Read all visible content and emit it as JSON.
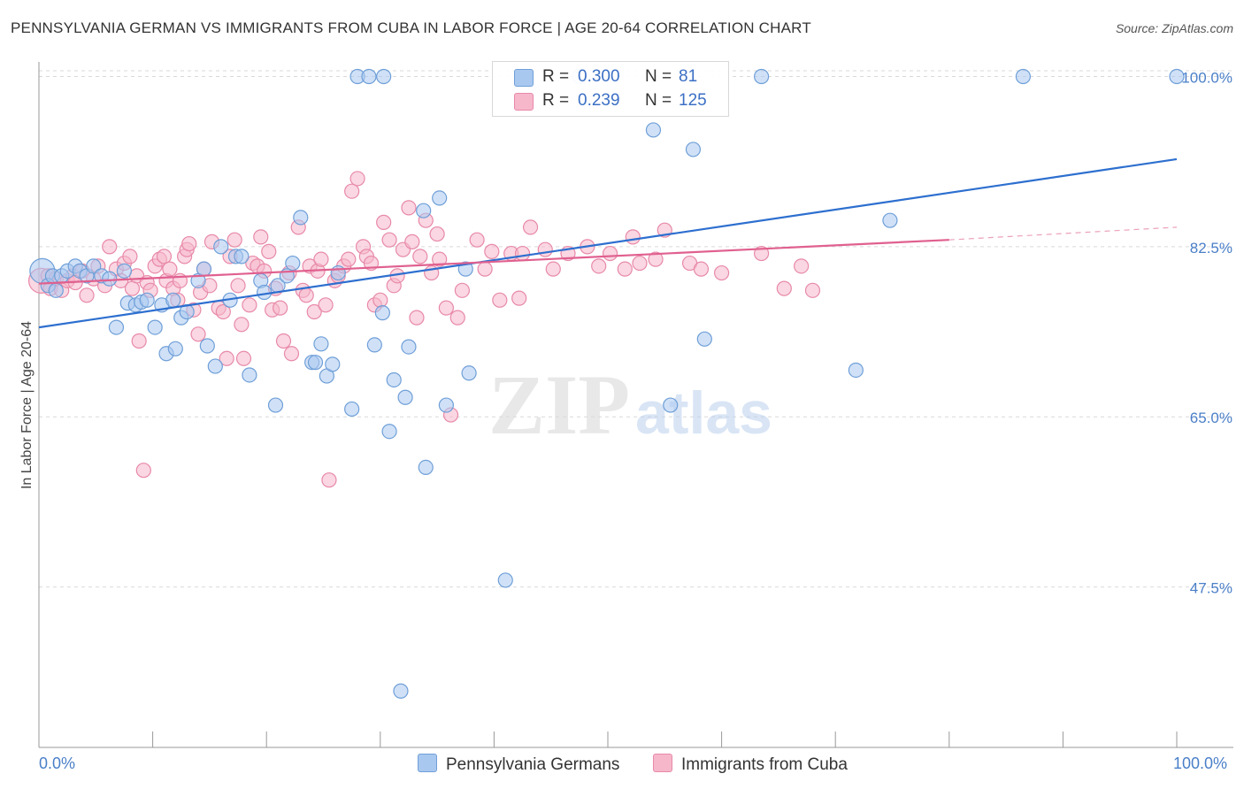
{
  "title": "PENNSYLVANIA GERMAN VS IMMIGRANTS FROM CUBA IN LABOR FORCE | AGE 20-64 CORRELATION CHART",
  "source": "Source: ZipAtlas.com",
  "watermark": {
    "zip": "ZIP",
    "atlas": "atlas"
  },
  "legend": {
    "rows": [
      {
        "r_label": "R =",
        "r_value": "0.300",
        "n_label": "N =",
        "n_value": "81"
      },
      {
        "r_label": "R =",
        "r_value": "0.239",
        "n_label": "N =",
        "n_value": "125"
      }
    ]
  },
  "x_axis": {
    "min_label": "0.0%",
    "max_label": "100.0%"
  },
  "bottom_legend": {
    "series1": "Pennsylvania Germans",
    "series2": "Immigrants from Cuba"
  },
  "colors": {
    "blue_fill": "#a9c8f0",
    "blue_stroke": "#6f9fd8",
    "blue_line": "#2d6fcf",
    "pink_fill": "#f6b7cb",
    "pink_stroke": "#e889a8",
    "pink_line": "#e0608f",
    "grid": "#d9d9d9",
    "tick_label": "#4a7fc8"
  },
  "chart_data": {
    "type": "scatter",
    "title": "PENNSYLVANIA GERMAN VS IMMIGRANTS FROM CUBA IN LABOR FORCE | AGE 20-64 CORRELATION CHART",
    "xlabel": "",
    "ylabel": "In Labor Force | Age 20-64",
    "xlim": [
      0,
      100
    ],
    "ylim": [
      31,
      101.5
    ],
    "y_ticks": [
      47.5,
      65.0,
      82.5,
      100.0
    ],
    "y_tick_labels": [
      "47.5%",
      "65.0%",
      "82.5%",
      "100.0%"
    ],
    "x_tick_labels": [
      "0.0%",
      "100.0%"
    ],
    "grid": "horizontal dashed",
    "legend_position": "top-center",
    "series": [
      {
        "name": "Pennsylvania Germans",
        "color": "#a9c8f0",
        "R": 0.3,
        "N": 81,
        "trend": {
          "x": [
            0,
            100
          ],
          "y": [
            74.2,
            91.5
          ]
        },
        "points": [
          [
            0.3,
            80.0,
            3
          ],
          [
            0.8,
            78.5,
            1
          ],
          [
            1.2,
            79.5,
            1
          ],
          [
            1.5,
            78.0,
            1
          ],
          [
            2.0,
            79.5,
            1
          ],
          [
            2.5,
            80.0,
            1
          ],
          [
            3.2,
            80.5,
            1
          ],
          [
            3.6,
            80.0,
            1
          ],
          [
            4.2,
            79.5,
            1
          ],
          [
            4.8,
            80.5,
            1
          ],
          [
            5.5,
            79.5,
            1
          ],
          [
            6.2,
            79.2,
            1
          ],
          [
            6.8,
            74.2,
            1
          ],
          [
            7.5,
            80.0,
            1
          ],
          [
            7.8,
            76.7,
            1
          ],
          [
            8.5,
            76.5,
            1
          ],
          [
            9.0,
            76.8,
            1
          ],
          [
            9.5,
            77.0,
            1
          ],
          [
            10.2,
            74.2,
            1
          ],
          [
            10.8,
            76.5,
            1
          ],
          [
            11.2,
            71.5,
            1
          ],
          [
            11.8,
            77.0,
            1
          ],
          [
            12.0,
            72.0,
            1
          ],
          [
            12.5,
            75.2,
            1
          ],
          [
            13.0,
            75.8,
            1
          ],
          [
            14.0,
            79.0,
            1
          ],
          [
            14.5,
            80.2,
            1
          ],
          [
            14.8,
            72.3,
            1
          ],
          [
            15.5,
            70.2,
            1
          ],
          [
            16.0,
            82.5,
            1
          ],
          [
            16.8,
            77.0,
            1
          ],
          [
            17.3,
            81.5,
            1
          ],
          [
            17.8,
            81.5,
            1
          ],
          [
            18.5,
            69.3,
            1
          ],
          [
            19.5,
            79.0,
            1
          ],
          [
            19.8,
            77.8,
            1
          ],
          [
            20.8,
            66.2,
            1
          ],
          [
            21.0,
            78.5,
            1
          ],
          [
            21.8,
            79.5,
            1
          ],
          [
            22.3,
            80.8,
            1
          ],
          [
            23.0,
            85.5,
            1
          ],
          [
            24.0,
            70.6,
            1
          ],
          [
            24.3,
            70.6,
            1
          ],
          [
            24.8,
            72.5,
            1
          ],
          [
            25.3,
            69.2,
            1
          ],
          [
            25.8,
            70.4,
            1
          ],
          [
            26.3,
            79.8,
            1
          ],
          [
            27.5,
            65.8,
            1
          ],
          [
            28.0,
            100.0,
            1
          ],
          [
            29.0,
            100.0,
            1
          ],
          [
            29.5,
            72.4,
            1
          ],
          [
            30.2,
            75.7,
            1
          ],
          [
            30.3,
            100.0,
            1
          ],
          [
            30.8,
            63.5,
            1
          ],
          [
            31.2,
            68.8,
            1
          ],
          [
            31.8,
            36.8,
            1
          ],
          [
            32.2,
            67.0,
            1
          ],
          [
            32.5,
            72.2,
            1
          ],
          [
            33.8,
            86.2,
            1
          ],
          [
            34.0,
            59.8,
            1
          ],
          [
            35.2,
            87.5,
            1
          ],
          [
            35.8,
            66.2,
            1
          ],
          [
            37.5,
            80.2,
            1
          ],
          [
            37.8,
            69.5,
            1
          ],
          [
            41.0,
            48.2,
            1
          ],
          [
            42.5,
            100.0,
            1
          ],
          [
            47.5,
            100.0,
            1
          ],
          [
            54.0,
            94.5,
            1
          ],
          [
            55.5,
            66.2,
            1
          ],
          [
            57.5,
            92.5,
            1
          ],
          [
            58.5,
            73.0,
            1
          ],
          [
            63.5,
            100.0,
            1
          ],
          [
            71.8,
            69.8,
            1
          ],
          [
            74.8,
            85.2,
            1
          ],
          [
            86.5,
            100.0,
            1
          ],
          [
            100.0,
            100.0,
            1
          ]
        ]
      },
      {
        "name": "Immigrants from Cuba",
        "color": "#f6b7cb",
        "R": 0.239,
        "N": 125,
        "trend": {
          "x": [
            0,
            80
          ],
          "y": [
            78.7,
            83.2
          ]
        },
        "trend_dashed_extension": {
          "x": [
            80,
            100
          ],
          "y": [
            83.2,
            84.5
          ]
        },
        "points": [
          [
            0.2,
            79.0,
            2
          ],
          [
            0.8,
            79.5,
            1
          ],
          [
            1.0,
            78.2,
            1
          ],
          [
            1.5,
            79.2,
            1
          ],
          [
            2.0,
            78.0,
            1
          ],
          [
            2.5,
            79.0,
            1
          ],
          [
            3.0,
            79.5,
            1
          ],
          [
            3.2,
            78.8,
            1
          ],
          [
            3.8,
            80.0,
            1
          ],
          [
            4.2,
            77.5,
            1
          ],
          [
            4.8,
            79.2,
            1
          ],
          [
            5.2,
            80.5,
            1
          ],
          [
            5.8,
            78.5,
            1
          ],
          [
            6.2,
            82.5,
            1
          ],
          [
            6.8,
            80.2,
            1
          ],
          [
            7.2,
            79.0,
            1
          ],
          [
            7.5,
            80.8,
            1
          ],
          [
            8.0,
            81.5,
            1
          ],
          [
            8.2,
            78.2,
            1
          ],
          [
            8.6,
            79.5,
            1
          ],
          [
            8.8,
            72.8,
            1
          ],
          [
            9.2,
            59.5,
            1
          ],
          [
            9.5,
            78.8,
            1
          ],
          [
            9.8,
            78.0,
            1
          ],
          [
            10.2,
            80.5,
            1
          ],
          [
            10.6,
            81.2,
            1
          ],
          [
            11.0,
            81.5,
            1
          ],
          [
            11.2,
            79.0,
            1
          ],
          [
            11.5,
            80.2,
            1
          ],
          [
            11.8,
            78.2,
            1
          ],
          [
            12.2,
            77.0,
            1
          ],
          [
            12.4,
            79.0,
            1
          ],
          [
            12.8,
            81.5,
            1
          ],
          [
            13.0,
            82.2,
            1
          ],
          [
            13.2,
            82.8,
            1
          ],
          [
            13.6,
            76.0,
            1
          ],
          [
            14.0,
            73.5,
            1
          ],
          [
            14.2,
            77.8,
            1
          ],
          [
            14.5,
            80.2,
            1
          ],
          [
            15.0,
            78.5,
            1
          ],
          [
            15.2,
            83.0,
            1
          ],
          [
            15.8,
            76.2,
            1
          ],
          [
            16.2,
            75.8,
            1
          ],
          [
            16.5,
            71.0,
            1
          ],
          [
            16.8,
            81.5,
            1
          ],
          [
            17.2,
            83.2,
            1
          ],
          [
            17.5,
            78.5,
            1
          ],
          [
            17.8,
            74.5,
            1
          ],
          [
            18.0,
            71.0,
            1
          ],
          [
            18.5,
            76.5,
            1
          ],
          [
            18.8,
            80.8,
            1
          ],
          [
            19.2,
            80.5,
            1
          ],
          [
            19.5,
            83.5,
            1
          ],
          [
            19.8,
            80.0,
            1
          ],
          [
            20.2,
            82.0,
            1
          ],
          [
            20.5,
            76.0,
            1
          ],
          [
            20.8,
            78.2,
            1
          ],
          [
            21.2,
            76.2,
            1
          ],
          [
            21.5,
            72.8,
            1
          ],
          [
            22.0,
            79.8,
            1
          ],
          [
            22.2,
            71.5,
            1
          ],
          [
            22.8,
            84.5,
            1
          ],
          [
            23.2,
            78.0,
            1
          ],
          [
            23.5,
            77.5,
            1
          ],
          [
            23.8,
            80.5,
            1
          ],
          [
            24.2,
            75.8,
            1
          ],
          [
            24.5,
            80.0,
            1
          ],
          [
            24.8,
            81.2,
            1
          ],
          [
            25.2,
            76.5,
            1
          ],
          [
            25.5,
            58.5,
            1
          ],
          [
            26.0,
            79.0,
            1
          ],
          [
            26.3,
            79.5,
            1
          ],
          [
            26.8,
            80.5,
            1
          ],
          [
            27.2,
            81.2,
            1
          ],
          [
            27.5,
            88.2,
            1
          ],
          [
            28.0,
            89.5,
            1
          ],
          [
            28.5,
            82.5,
            1
          ],
          [
            28.8,
            81.5,
            1
          ],
          [
            29.2,
            80.8,
            1
          ],
          [
            29.5,
            76.5,
            1
          ],
          [
            30.0,
            77.0,
            1
          ],
          [
            30.3,
            85.0,
            1
          ],
          [
            30.8,
            83.2,
            1
          ],
          [
            31.2,
            78.5,
            1
          ],
          [
            31.5,
            79.5,
            1
          ],
          [
            32.0,
            82.2,
            1
          ],
          [
            32.5,
            86.5,
            1
          ],
          [
            32.8,
            83.0,
            1
          ],
          [
            33.2,
            75.2,
            1
          ],
          [
            33.5,
            81.5,
            1
          ],
          [
            34.0,
            85.2,
            1
          ],
          [
            34.5,
            79.8,
            1
          ],
          [
            35.0,
            83.8,
            1
          ],
          [
            35.2,
            81.2,
            1
          ],
          [
            35.8,
            76.2,
            1
          ],
          [
            36.2,
            65.2,
            1
          ],
          [
            36.8,
            75.2,
            1
          ],
          [
            37.2,
            78.0,
            1
          ],
          [
            38.5,
            83.2,
            1
          ],
          [
            39.2,
            80.2,
            1
          ],
          [
            39.8,
            82.0,
            1
          ],
          [
            40.5,
            77.0,
            1
          ],
          [
            41.5,
            81.8,
            1
          ],
          [
            42.2,
            77.2,
            1
          ],
          [
            42.5,
            81.8,
            1
          ],
          [
            43.2,
            84.5,
            1
          ],
          [
            44.5,
            82.2,
            1
          ],
          [
            45.2,
            80.2,
            1
          ],
          [
            46.5,
            81.8,
            1
          ],
          [
            48.2,
            82.5,
            1
          ],
          [
            49.2,
            80.5,
            1
          ],
          [
            50.2,
            81.8,
            1
          ],
          [
            51.5,
            80.2,
            1
          ],
          [
            52.2,
            83.5,
            1
          ],
          [
            52.8,
            80.8,
            1
          ],
          [
            54.2,
            81.2,
            1
          ],
          [
            55.0,
            84.2,
            1
          ],
          [
            57.2,
            80.8,
            1
          ],
          [
            58.2,
            80.2,
            1
          ],
          [
            60.0,
            79.8,
            1
          ],
          [
            63.5,
            81.8,
            1
          ],
          [
            65.5,
            78.2,
            1
          ],
          [
            67.0,
            80.5,
            1
          ],
          [
            68.0,
            78.0,
            1
          ]
        ]
      }
    ]
  }
}
